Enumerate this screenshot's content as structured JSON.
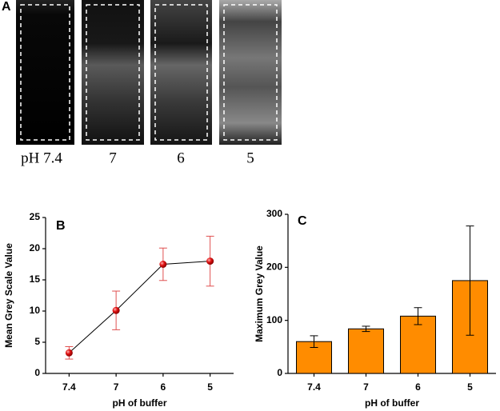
{
  "panel_a": {
    "label": "A",
    "image_labels": [
      "pH 7.4",
      "7",
      "6",
      "5"
    ]
  },
  "chart_data": [
    {
      "type": "line",
      "panel_label": "B",
      "x_label": "pH of buffer",
      "y_label": "Mean Grey Scale Value",
      "categories": [
        "7.4",
        "7",
        "6",
        "5"
      ],
      "values": [
        3.3,
        10.1,
        17.5,
        18.0
      ],
      "errors": [
        1.0,
        3.1,
        2.6,
        4.0
      ],
      "color": "#000000",
      "marker_color": "#e01010",
      "error_color": "#e05050",
      "ylim": [
        0,
        25
      ],
      "yticks": [
        0,
        5,
        10,
        15,
        20,
        25
      ]
    },
    {
      "type": "bar",
      "panel_label": "C",
      "x_label": "pH of buffer",
      "y_label": "Maximum Grey Value",
      "categories": [
        "7.4",
        "7",
        "6",
        "5"
      ],
      "values": [
        60,
        84,
        108,
        175
      ],
      "errors": [
        11,
        5,
        16,
        103
      ],
      "color": "#ff8c00",
      "error_color": "#000000",
      "ylim": [
        0,
        300
      ],
      "yticks": [
        0,
        100,
        200,
        300
      ]
    }
  ]
}
